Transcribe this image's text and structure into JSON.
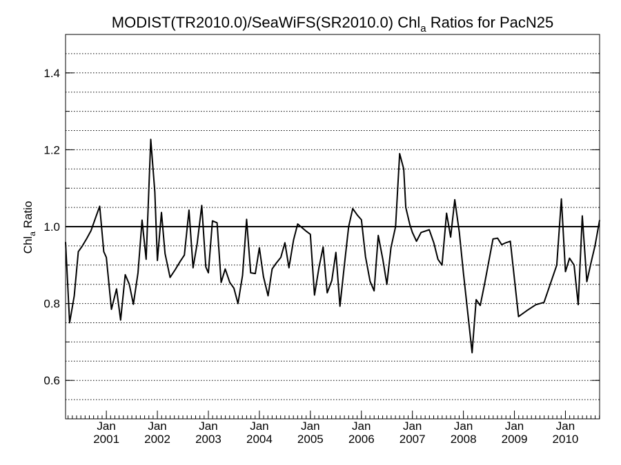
{
  "chart_data": {
    "type": "line",
    "title_main": "MODIST(TR2010.0)/SeaWiFS(SR2010.0)  Chl",
    "title_subscript": "a",
    "title_rest": " Ratios for PacN25",
    "ylabel_main": "Chl",
    "ylabel_subscript": "a",
    "ylabel_rest": " Ratio",
    "ylim": [
      0.5,
      1.5
    ],
    "xlim": [
      2000.2,
      2010.67
    ],
    "y_ticks": [
      {
        "value": 0.6,
        "label": "0.6"
      },
      {
        "value": 0.8,
        "label": "0.8"
      },
      {
        "value": 1.0,
        "label": "1.0"
      },
      {
        "value": 1.2,
        "label": "1.2"
      },
      {
        "value": 1.4,
        "label": "1.4"
      }
    ],
    "x_ticks": [
      {
        "value": 2001.0,
        "month": "Jan",
        "year": "2001"
      },
      {
        "value": 2002.0,
        "month": "Jan",
        "year": "2002"
      },
      {
        "value": 2003.0,
        "month": "Jan",
        "year": "2003"
      },
      {
        "value": 2004.0,
        "month": "Jan",
        "year": "2004"
      },
      {
        "value": 2005.0,
        "month": "Jan",
        "year": "2005"
      },
      {
        "value": 2006.0,
        "month": "Jan",
        "year": "2006"
      },
      {
        "value": 2007.0,
        "month": "Jan",
        "year": "2007"
      },
      {
        "value": 2008.0,
        "month": "Jan",
        "year": "2008"
      },
      {
        "value": 2009.0,
        "month": "Jan",
        "year": "2009"
      },
      {
        "value": 2010.0,
        "month": "Jan",
        "year": "2010"
      }
    ],
    "grid": "dotted horizontal every 0.05",
    "reference_line": 1.0,
    "series": [
      {
        "values": [
          [
            2000.2,
            0.96
          ],
          [
            2000.28,
            0.75
          ],
          [
            2000.37,
            0.82
          ],
          [
            2000.45,
            0.935
          ],
          [
            2000.53,
            0.95
          ],
          [
            2000.62,
            0.97
          ],
          [
            2000.7,
            0.99
          ],
          [
            2000.78,
            1.02
          ],
          [
            2000.87,
            1.053
          ],
          [
            2000.95,
            0.935
          ],
          [
            2001.0,
            0.92
          ],
          [
            2001.1,
            0.785
          ],
          [
            2001.2,
            0.838
          ],
          [
            2001.28,
            0.757
          ],
          [
            2001.37,
            0.875
          ],
          [
            2001.45,
            0.85
          ],
          [
            2001.53,
            0.798
          ],
          [
            2001.62,
            0.88
          ],
          [
            2001.7,
            1.017
          ],
          [
            2001.78,
            0.915
          ],
          [
            2001.87,
            1.227
          ],
          [
            2001.95,
            1.09
          ],
          [
            2002.0,
            0.912
          ],
          [
            2002.08,
            1.037
          ],
          [
            2002.15,
            0.93
          ],
          [
            2002.25,
            0.868
          ],
          [
            2002.35,
            0.888
          ],
          [
            2002.45,
            0.91
          ],
          [
            2002.53,
            0.926
          ],
          [
            2002.62,
            1.043
          ],
          [
            2002.7,
            0.893
          ],
          [
            2002.78,
            0.955
          ],
          [
            2002.87,
            1.055
          ],
          [
            2002.95,
            0.895
          ],
          [
            2003.0,
            0.88
          ],
          [
            2003.08,
            1.015
          ],
          [
            2003.17,
            1.01
          ],
          [
            2003.25,
            0.855
          ],
          [
            2003.33,
            0.89
          ],
          [
            2003.42,
            0.855
          ],
          [
            2003.5,
            0.84
          ],
          [
            2003.58,
            0.8
          ],
          [
            2003.67,
            0.873
          ],
          [
            2003.75,
            1.019
          ],
          [
            2003.83,
            0.88
          ],
          [
            2003.92,
            0.878
          ],
          [
            2004.0,
            0.945
          ],
          [
            2004.08,
            0.87
          ],
          [
            2004.17,
            0.82
          ],
          [
            2004.25,
            0.89
          ],
          [
            2004.33,
            0.905
          ],
          [
            2004.42,
            0.92
          ],
          [
            2004.5,
            0.958
          ],
          [
            2004.58,
            0.893
          ],
          [
            2004.67,
            0.965
          ],
          [
            2004.75,
            1.007
          ],
          [
            2004.83,
            0.998
          ],
          [
            2004.92,
            0.988
          ],
          [
            2005.0,
            0.98
          ],
          [
            2005.08,
            0.822
          ],
          [
            2005.17,
            0.895
          ],
          [
            2005.25,
            0.947
          ],
          [
            2005.33,
            0.828
          ],
          [
            2005.42,
            0.86
          ],
          [
            2005.5,
            0.933
          ],
          [
            2005.58,
            0.793
          ],
          [
            2005.67,
            0.905
          ],
          [
            2005.75,
            1.0
          ],
          [
            2005.83,
            1.047
          ],
          [
            2005.92,
            1.03
          ],
          [
            2006.0,
            1.018
          ],
          [
            2006.08,
            0.922
          ],
          [
            2006.17,
            0.858
          ],
          [
            2006.25,
            0.833
          ],
          [
            2006.33,
            0.977
          ],
          [
            2006.42,
            0.915
          ],
          [
            2006.5,
            0.85
          ],
          [
            2006.58,
            0.945
          ],
          [
            2006.67,
            1.0
          ],
          [
            2006.75,
            1.19
          ],
          [
            2006.83,
            1.15
          ],
          [
            2006.87,
            1.05
          ],
          [
            2006.95,
            1.005
          ],
          [
            2007.0,
            0.985
          ],
          [
            2007.08,
            0.962
          ],
          [
            2007.17,
            0.985
          ],
          [
            2007.33,
            0.992
          ],
          [
            2007.42,
            0.958
          ],
          [
            2007.5,
            0.915
          ],
          [
            2007.58,
            0.9
          ],
          [
            2007.67,
            1.035
          ],
          [
            2007.75,
            0.973
          ],
          [
            2007.83,
            1.07
          ],
          [
            2007.92,
            0.985
          ],
          [
            2008.0,
            0.88
          ],
          [
            2008.17,
            0.672
          ],
          [
            2008.25,
            0.81
          ],
          [
            2008.33,
            0.795
          ],
          [
            2008.42,
            0.855
          ],
          [
            2008.58,
            0.968
          ],
          [
            2008.67,
            0.97
          ],
          [
            2008.75,
            0.953
          ],
          [
            2008.83,
            0.958
          ],
          [
            2008.92,
            0.962
          ],
          [
            2009.08,
            0.766
          ],
          [
            2009.25,
            0.782
          ],
          [
            2009.42,
            0.797
          ],
          [
            2009.58,
            0.803
          ],
          [
            2009.83,
            0.9
          ],
          [
            2009.92,
            1.072
          ],
          [
            2010.0,
            0.883
          ],
          [
            2010.08,
            0.918
          ],
          [
            2010.17,
            0.9
          ],
          [
            2010.25,
            0.797
          ],
          [
            2010.33,
            1.028
          ],
          [
            2010.42,
            0.857
          ],
          [
            2010.5,
            0.905
          ],
          [
            2010.58,
            0.95
          ],
          [
            2010.67,
            1.017
          ]
        ]
      }
    ]
  }
}
